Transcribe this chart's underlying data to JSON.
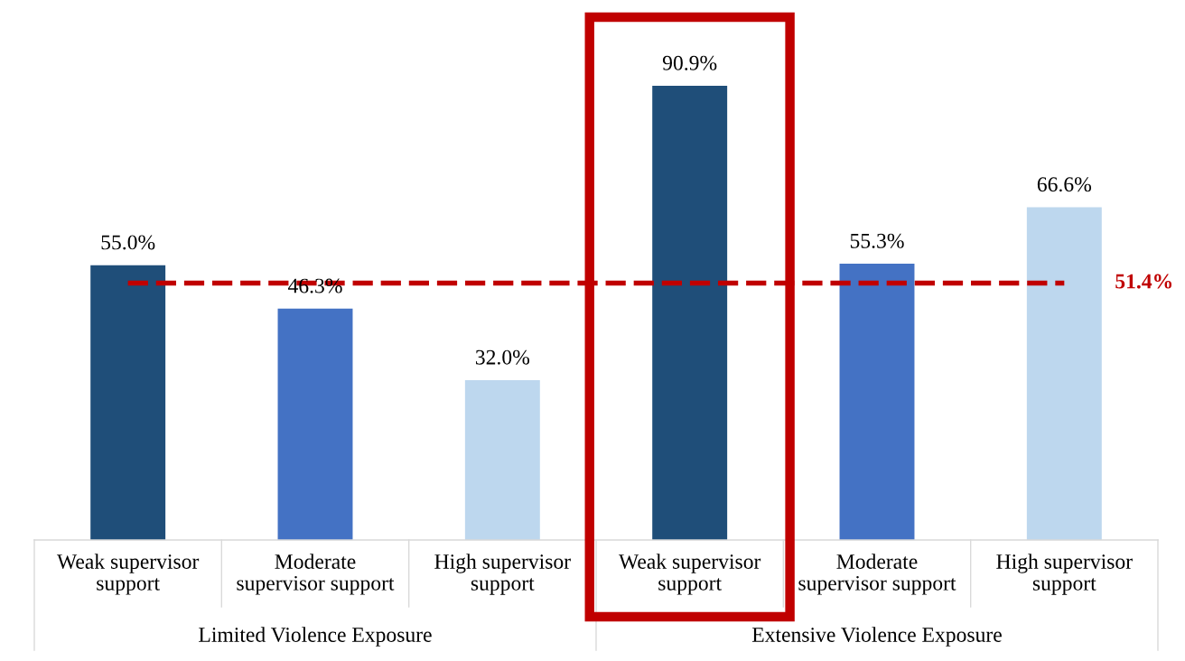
{
  "chart_data": {
    "type": "bar",
    "categories": [
      "Weak supervisor\nsupport",
      "Moderate\nsupervisor support",
      "High supervisor\nsupport",
      "Weak supervisor\nsupport",
      "Moderate\nsupervisor support",
      "High supervisor\nsupport"
    ],
    "values": [
      55.0,
      46.3,
      32.0,
      90.9,
      55.3,
      66.6
    ],
    "colors": [
      "#1f4e79",
      "#4472c4",
      "#bdd7ee",
      "#1f4e79",
      "#4472c4",
      "#bdd7ee"
    ],
    "value_labels": [
      "55.0%",
      "46.3%",
      "32.0%",
      "90.9%",
      "55.3%",
      "66.6%"
    ],
    "ref_lines": [
      {
        "axis": "y",
        "value": 51.4,
        "label": "51.4%",
        "color": "#c00000",
        "line_style": "dashed"
      }
    ],
    "annotations": [
      "Limited Violence Exposure",
      "Extensive Violence Exposure"
    ]
  }
}
